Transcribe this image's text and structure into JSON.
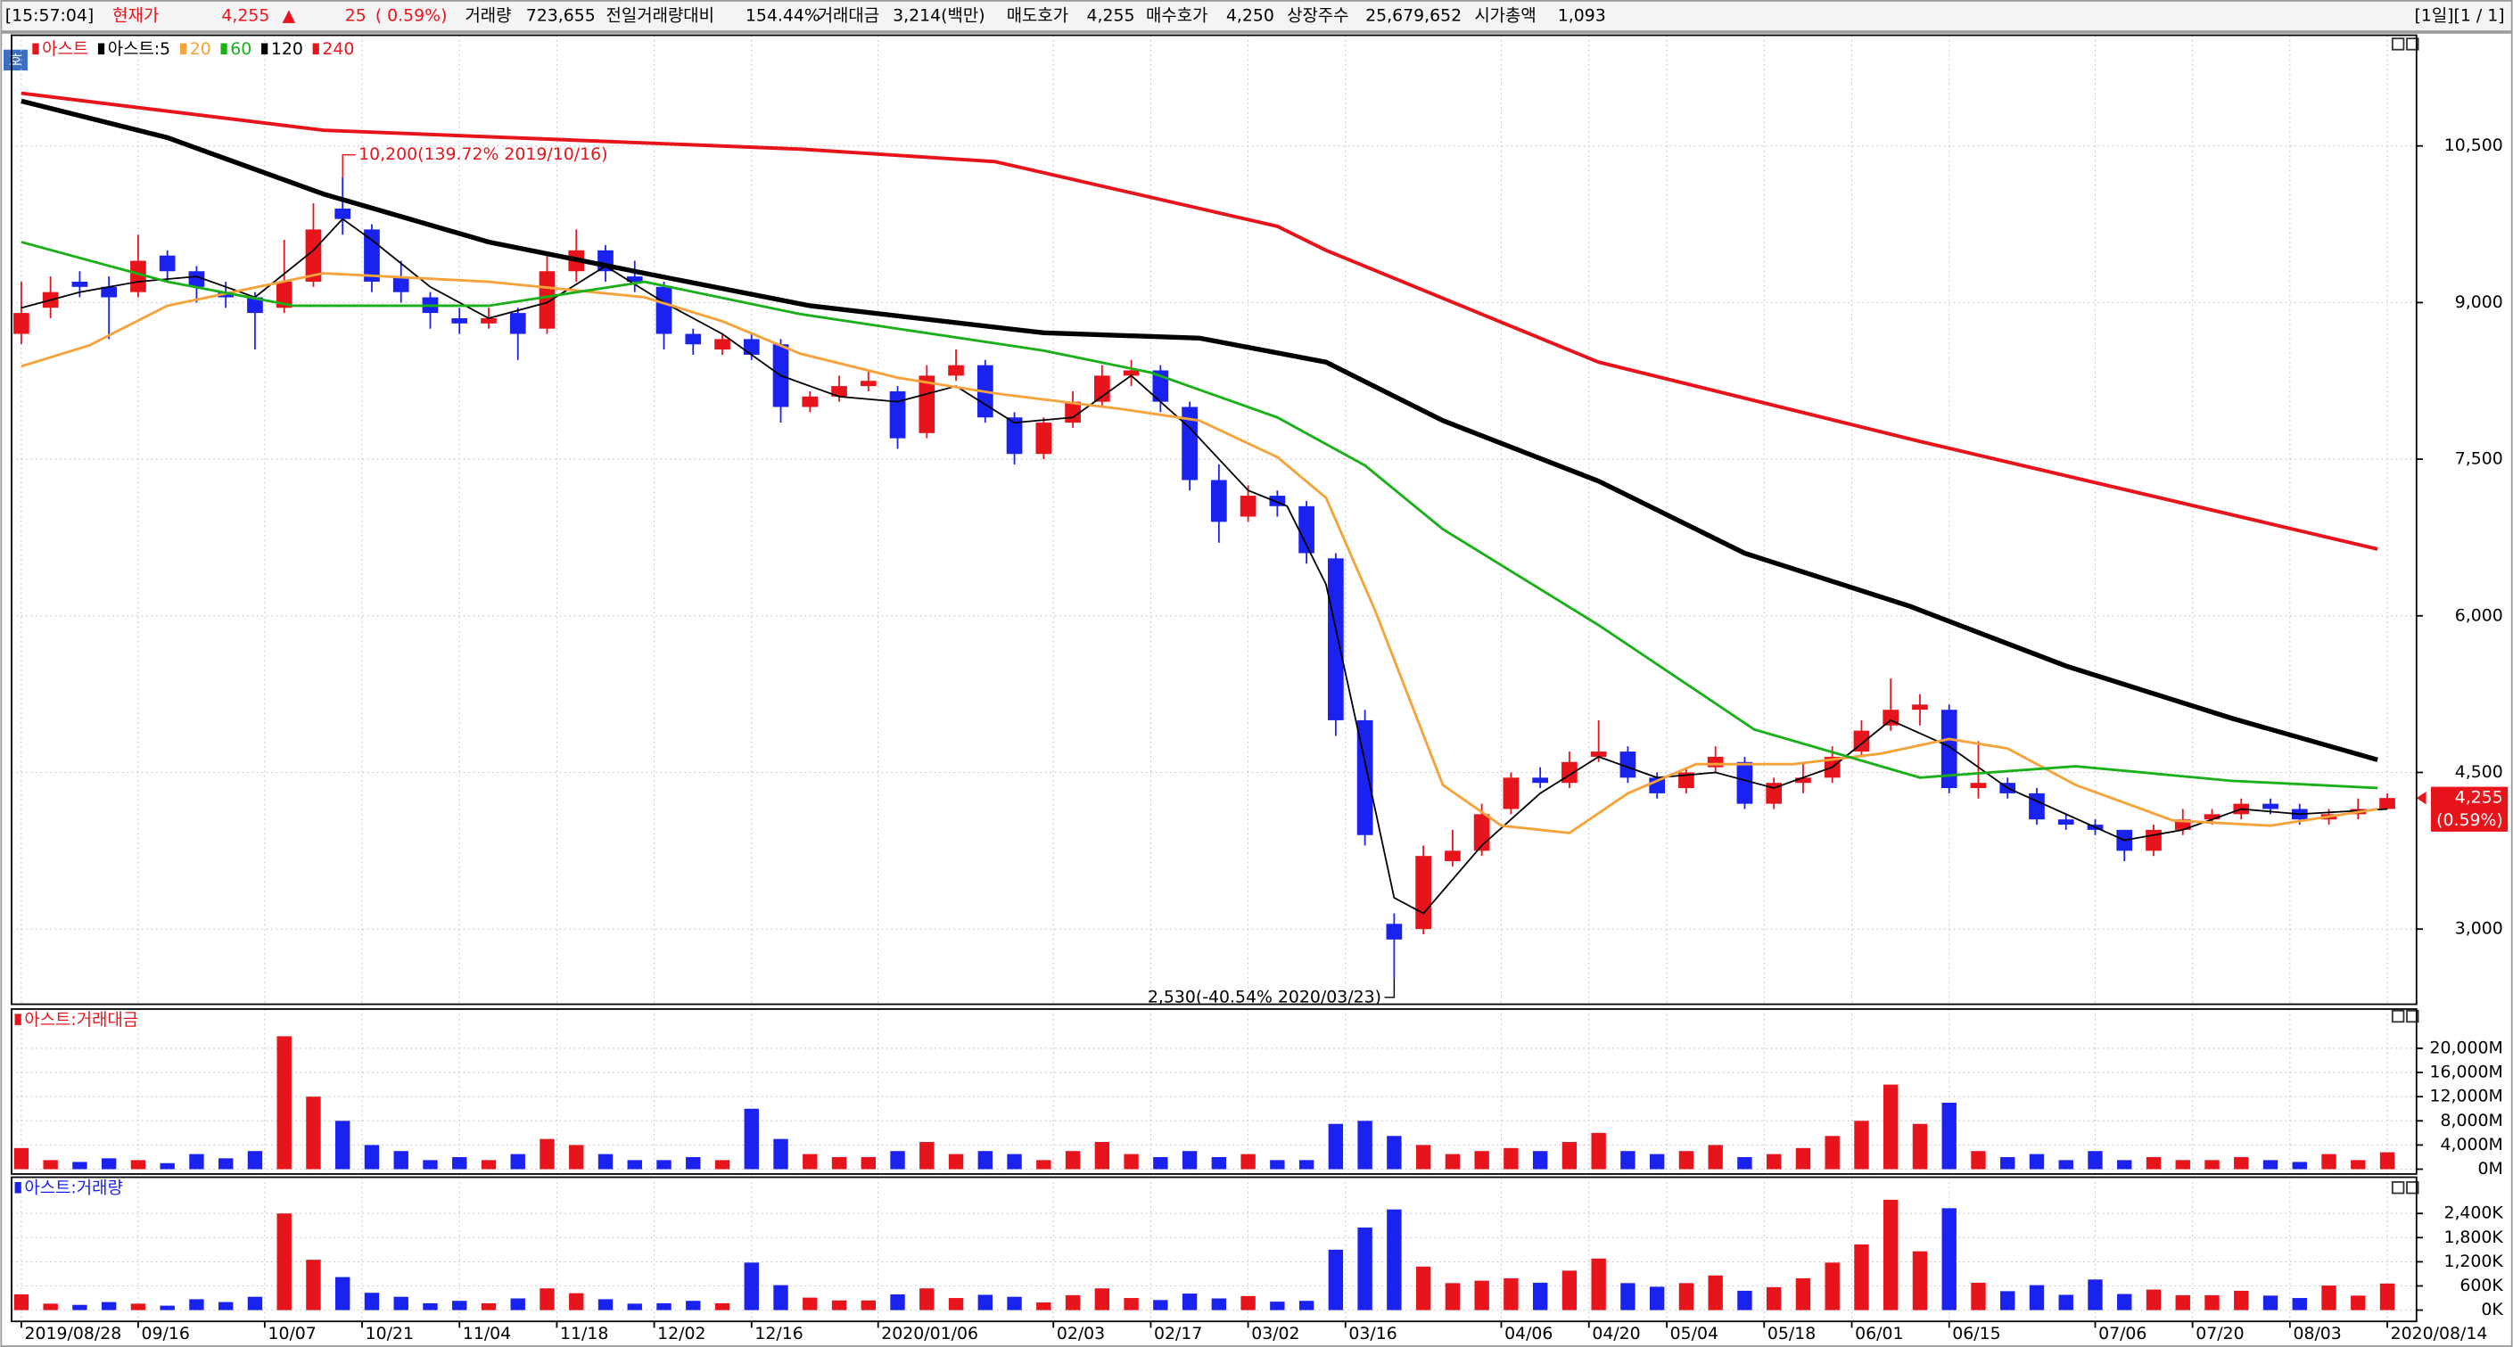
{
  "header": {
    "time": "[15:57:04]",
    "items": [
      "현재가",
      "4,255",
      "▲",
      "25",
      "( 0.59%)",
      "거래량",
      "723,655",
      "전일거래량대비",
      "154.44%",
      "거래대금",
      "3,214(백만)",
      "매도호가",
      "4,255",
      "매수호가",
      "4,250",
      "상장주수",
      "25,679,652",
      "시가총액",
      "1,093"
    ],
    "page": "[1일][1 / 1]"
  },
  "panel_icon": "호",
  "chart_data": [
    {
      "type": "candlestick",
      "name": "아스트",
      "up_color": "#e8141b",
      "down_color": "#1a22f0",
      "xlim": [
        -1,
        246
      ],
      "xticks": [
        {
          "value": 0,
          "label": "2019/08/28"
        },
        {
          "value": 12,
          "label": "09/16"
        },
        {
          "value": 25,
          "label": "10/07"
        },
        {
          "value": 35,
          "label": "10/21"
        },
        {
          "value": 45,
          "label": "11/04"
        },
        {
          "value": 55,
          "label": "11/18"
        },
        {
          "value": 65,
          "label": "12/02"
        },
        {
          "value": 75,
          "label": "12/16"
        },
        {
          "value": 88,
          "label": "2020/01/06"
        },
        {
          "value": 106,
          "label": "02/03"
        },
        {
          "value": 116,
          "label": "02/17"
        },
        {
          "value": 126,
          "label": "03/02"
        },
        {
          "value": 136,
          "label": "03/16"
        },
        {
          "value": 152,
          "label": "04/06"
        },
        {
          "value": 161,
          "label": "04/20"
        },
        {
          "value": 169,
          "label": "05/04"
        },
        {
          "value": 179,
          "label": "05/18"
        },
        {
          "value": 188,
          "label": "06/01"
        },
        {
          "value": 198,
          "label": "06/15"
        },
        {
          "value": 213,
          "label": "07/06"
        },
        {
          "value": 223,
          "label": "07/20"
        },
        {
          "value": 233,
          "label": "08/03"
        },
        {
          "value": 243,
          "label": "2020/08/14"
        }
      ],
      "ylim": [
        2280,
        11560
      ],
      "yticks": [
        {
          "value": 3000,
          "label": "3,000"
        },
        {
          "value": 4500,
          "label": "4,500"
        },
        {
          "value": 6000,
          "label": "6,000"
        },
        {
          "value": 7500,
          "label": "7,500"
        },
        {
          "value": 9000,
          "label": "9,000"
        },
        {
          "value": 10500,
          "label": "10,500"
        }
      ],
      "grid": true,
      "x": [
        0,
        3,
        6,
        9,
        12,
        15,
        18,
        21,
        24,
        27,
        30,
        33,
        36,
        39,
        42,
        45,
        48,
        51,
        54,
        57,
        60,
        63,
        66,
        69,
        72,
        75,
        78,
        81,
        84,
        87,
        90,
        93,
        96,
        99,
        102,
        105,
        108,
        111,
        114,
        117,
        120,
        123,
        126,
        129,
        132,
        135,
        138,
        141,
        144,
        147,
        150,
        153,
        156,
        159,
        162,
        165,
        168,
        171,
        174,
        177,
        180,
        183,
        186,
        189,
        192,
        195,
        198,
        201,
        204,
        207,
        210,
        213,
        216,
        219,
        222,
        225,
        228,
        231,
        234,
        237,
        240,
        243
      ],
      "open": [
        8700,
        8950,
        9200,
        9150,
        9100,
        9450,
        9300,
        9100,
        9050,
        8950,
        9200,
        9900,
        9700,
        9250,
        9050,
        8850,
        8800,
        8900,
        8750,
        9300,
        9500,
        9250,
        9150,
        8700,
        8550,
        8650,
        8600,
        8000,
        8100,
        8200,
        8150,
        7750,
        8300,
        8400,
        7900,
        7550,
        7850,
        8050,
        8300,
        8350,
        8000,
        7300,
        6950,
        7150,
        7050,
        6550,
        5000,
        3050,
        3000,
        3650,
        3750,
        4150,
        4450,
        4400,
        4650,
        4700,
        4450,
        4350,
        4550,
        4600,
        4200,
        4400,
        4450,
        4700,
        4950,
        5100,
        5100,
        4350,
        4400,
        4300,
        4050,
        4000,
        3950,
        3750,
        3950,
        4050,
        4100,
        4200,
        4150,
        4050,
        4100,
        4150
      ],
      "high": [
        9200,
        9250,
        9300,
        9250,
        9650,
        9500,
        9350,
        9200,
        9100,
        9600,
        9950,
        10200,
        9750,
        9400,
        9100,
        8950,
        8950,
        8950,
        9450,
        9700,
        9550,
        9400,
        9200,
        8750,
        8700,
        8700,
        8650,
        8150,
        8300,
        8350,
        8200,
        8400,
        8550,
        8450,
        7950,
        7900,
        8150,
        8400,
        8450,
        8400,
        8050,
        7450,
        7250,
        7200,
        7100,
        6600,
        5100,
        3150,
        3800,
        3950,
        4200,
        4500,
        4550,
        4700,
        5000,
        4750,
        4500,
        4550,
        4750,
        4650,
        4450,
        4600,
        4750,
        5000,
        5400,
        5250,
        5150,
        4800,
        4450,
        4350,
        4100,
        4050,
        3950,
        4000,
        4150,
        4150,
        4250,
        4250,
        4200,
        4150,
        4250,
        4300
      ],
      "low": [
        8600,
        8850,
        9050,
        8650,
        9050,
        9200,
        9000,
        8950,
        8550,
        8900,
        9150,
        9650,
        9100,
        9000,
        8750,
        8700,
        8750,
        8450,
        8700,
        9200,
        9200,
        9100,
        8550,
        8500,
        8500,
        8450,
        7850,
        7950,
        8050,
        8150,
        7600,
        7700,
        8250,
        7850,
        7450,
        7500,
        7800,
        8000,
        8200,
        7950,
        7200,
        6700,
        6900,
        6950,
        6500,
        4850,
        3800,
        2530,
        2950,
        3600,
        3700,
        4100,
        4350,
        4350,
        4600,
        4400,
        4250,
        4300,
        4500,
        4150,
        4150,
        4300,
        4400,
        4650,
        4900,
        4950,
        4300,
        4250,
        4250,
        4000,
        3950,
        3900,
        3650,
        3700,
        3900,
        4000,
        4050,
        4100,
        4000,
        4000,
        4050,
        4150
      ],
      "close": [
        8900,
        9100,
        9150,
        9050,
        9400,
        9300,
        9150,
        9050,
        8900,
        9200,
        9700,
        9800,
        9200,
        9100,
        8900,
        8800,
        8850,
        8700,
        9300,
        9500,
        9300,
        9200,
        8700,
        8600,
        8650,
        8500,
        8000,
        8100,
        8200,
        8250,
        7700,
        8300,
        8400,
        7900,
        7550,
        7850,
        8050,
        8300,
        8350,
        8050,
        7300,
        6900,
        7150,
        7050,
        6600,
        5000,
        3900,
        2900,
        3700,
        3750,
        4100,
        4450,
        4400,
        4600,
        4700,
        4450,
        4300,
        4500,
        4650,
        4200,
        4400,
        4450,
        4650,
        4900,
        5100,
        5150,
        4350,
        4400,
        4300,
        4050,
        4000,
        3950,
        3750,
        3950,
        4050,
        4100,
        4200,
        4150,
        4050,
        4100,
        4150,
        4255
      ],
      "series": [
        {
          "name": "아스트:5",
          "color": "#000000",
          "x": [
            0,
            6,
            12,
            18,
            24,
            30,
            33,
            36,
            42,
            48,
            54,
            60,
            66,
            72,
            78,
            84,
            90,
            96,
            102,
            108,
            114,
            120,
            126,
            130,
            134,
            138,
            141,
            144,
            150,
            156,
            162,
            168,
            174,
            180,
            186,
            192,
            198,
            204,
            210,
            216,
            222,
            228,
            234,
            243
          ],
          "values": [
            8950,
            9100,
            9200,
            9250,
            9050,
            9500,
            9800,
            9600,
            9150,
            8850,
            9000,
            9350,
            9000,
            8700,
            8300,
            8100,
            8050,
            8200,
            7850,
            7900,
            8300,
            7800,
            7200,
            7050,
            6300,
            4600,
            3300,
            3150,
            3800,
            4300,
            4650,
            4450,
            4500,
            4350,
            4550,
            5000,
            4750,
            4350,
            4100,
            3850,
            3950,
            4150,
            4100,
            4150
          ]
        },
        {
          "name": "20",
          "color": "#f5a33a",
          "x": [
            0,
            7,
            15,
            31,
            48,
            64,
            72,
            80,
            90,
            100,
            113,
            121,
            129,
            134,
            139,
            146,
            152,
            159,
            165,
            172,
            182,
            191,
            198,
            204,
            211,
            221,
            231,
            242
          ],
          "values": [
            8390,
            8590,
            8970,
            9280,
            9200,
            9050,
            8820,
            8510,
            8280,
            8130,
            7980,
            7870,
            7520,
            7130,
            6060,
            4380,
            3990,
            3920,
            4300,
            4580,
            4580,
            4680,
            4820,
            4730,
            4380,
            4040,
            3990,
            4150
          ]
        },
        {
          "name": "60",
          "color": "#19b019",
          "x": [
            0,
            15,
            28,
            48,
            64,
            80,
            105,
            116,
            129,
            138,
            146,
            162,
            178,
            195,
            211,
            227,
            242
          ],
          "values": [
            9580,
            9200,
            8970,
            8970,
            9200,
            8890,
            8540,
            8330,
            7900,
            7440,
            6830,
            5910,
            4910,
            4450,
            4560,
            4420,
            4350
          ]
        },
        {
          "name": "120",
          "color": "#000000",
          "x": [
            0,
            15,
            31,
            48,
            64,
            81,
            105,
            121,
            134,
            146,
            162,
            177,
            194,
            210,
            227,
            242
          ],
          "values": [
            10930,
            10580,
            10040,
            9580,
            9280,
            8970,
            8710,
            8660,
            8430,
            7870,
            7290,
            6600,
            6090,
            5520,
            5020,
            4620
          ]
        },
        {
          "name": "240",
          "color": "#e8141b",
          "x": [
            0,
            31,
            80,
            100,
            129,
            134,
            162,
            195,
            242
          ],
          "values": [
            11005,
            10650,
            10470,
            10350,
            9730,
            9500,
            8430,
            7670,
            6640
          ]
        }
      ],
      "annotations": [
        {
          "text": "10,200(139.72% 2019/10/16)",
          "x": 33,
          "y": 10200
        },
        {
          "text": "2,530(-40.54% 2020/03/23)",
          "x": 141,
          "y": 2530
        }
      ],
      "last_price": {
        "value": 4255,
        "label": "4,255",
        "change": "(0.59%)",
        "color": "#e8141b"
      }
    },
    {
      "type": "bar",
      "title": "아스트:거래대금",
      "title_color": "#e8141b",
      "up_color": "#e8141b",
      "down_color": "#1a22f0",
      "ylim": [
        -800,
        26500
      ],
      "yticks": [
        {
          "value": 0,
          "label": "0M"
        },
        {
          "value": 4000,
          "label": "4,000M"
        },
        {
          "value": 8000,
          "label": "8,000M"
        },
        {
          "value": 12000,
          "label": "12,000M"
        },
        {
          "value": 16000,
          "label": "16,000M"
        },
        {
          "value": 20000,
          "label": "20,000M"
        }
      ],
      "grid": true,
      "values": [
        3500,
        1500,
        1200,
        1800,
        1500,
        1000,
        2500,
        1800,
        3000,
        22000,
        12000,
        8000,
        4000,
        3000,
        1500,
        2000,
        1500,
        2500,
        5000,
        4000,
        2500,
        1500,
        1500,
        2000,
        1500,
        10000,
        5000,
        2500,
        2000,
        2000,
        3000,
        4500,
        2500,
        3000,
        2500,
        1500,
        3000,
        4500,
        2500,
        2000,
        3000,
        2000,
        2500,
        1500,
        1500,
        7500,
        8000,
        5500,
        4000,
        2500,
        3000,
        3500,
        3000,
        4500,
        6000,
        3000,
        2500,
        3000,
        4000,
        2000,
        2500,
        3500,
        5500,
        8000,
        14000,
        7500,
        11000,
        3000,
        2000,
        2500,
        1500,
        3000,
        1500,
        2000,
        1500,
        1500,
        2000,
        1500,
        1200,
        2500,
        1500,
        2800
      ]
    },
    {
      "type": "bar",
      "title": "아스트:거래량",
      "title_color": "#1a22f0",
      "up_color": "#e8141b",
      "down_color": "#1a22f0",
      "ylim": [
        -280,
        3300
      ],
      "yticks": [
        {
          "value": 0,
          "label": "0K"
        },
        {
          "value": 600,
          "label": "600K"
        },
        {
          "value": 1200,
          "label": "1,200K"
        },
        {
          "value": 1800,
          "label": "1,800K"
        },
        {
          "value": 2400,
          "label": "2,400K"
        }
      ],
      "grid": true,
      "values": [
        390,
        160,
        130,
        200,
        160,
        110,
        270,
        200,
        330,
        2400,
        1250,
        820,
        430,
        330,
        170,
        230,
        170,
        290,
        540,
        420,
        270,
        160,
        170,
        230,
        170,
        1180,
        620,
        310,
        240,
        240,
        390,
        540,
        300,
        380,
        330,
        190,
        370,
        540,
        300,
        250,
        410,
        290,
        350,
        210,
        230,
        1500,
        2050,
        2500,
        1080,
        670,
        730,
        790,
        680,
        980,
        1280,
        670,
        580,
        670,
        860,
        480,
        570,
        790,
        1180,
        1630,
        2740,
        1460,
        2530,
        680,
        470,
        620,
        380,
        760,
        400,
        510,
        370,
        370,
        480,
        360,
        300,
        610,
        360,
        660
      ]
    }
  ]
}
